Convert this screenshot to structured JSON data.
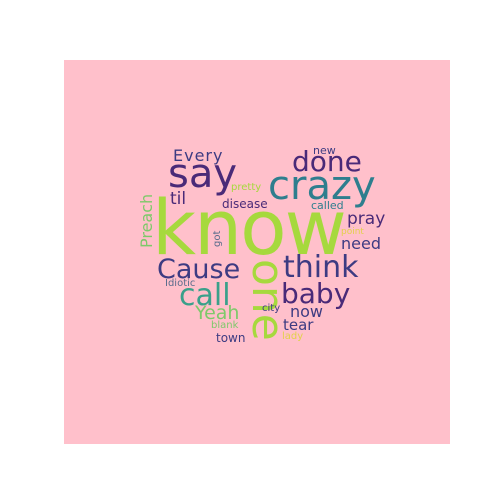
{
  "canvas": {
    "background": "#ffffff",
    "panel_color": "#ffc0cb"
  },
  "words": {
    "know": "know",
    "one": "one",
    "crazy": "crazy",
    "say": "say",
    "done": "done",
    "think": "think",
    "cause": "Cause",
    "call": "call",
    "baby": "baby",
    "every": "Every",
    "til": "til",
    "preach": "Preach",
    "pray": "pray",
    "need": "need",
    "yeah": "Yeah",
    "now": "now",
    "tear": "tear",
    "new": "new",
    "pretty": "pretty",
    "disease": "disease",
    "called": "called",
    "got": "got",
    "point": "point",
    "idiotic": "Idiotic",
    "city": "city",
    "blank": "blank",
    "lady": "lady",
    "town": "town"
  },
  "colors": {
    "lime": "#a6d93d",
    "purple": "#4a2a78",
    "indigo": "#3d3b82",
    "teal": "#2e7e8e",
    "green": "#4fb67a",
    "light_green": "#7ec96a",
    "yellow": "#e2d14a",
    "slate": "#5a6c8c"
  }
}
